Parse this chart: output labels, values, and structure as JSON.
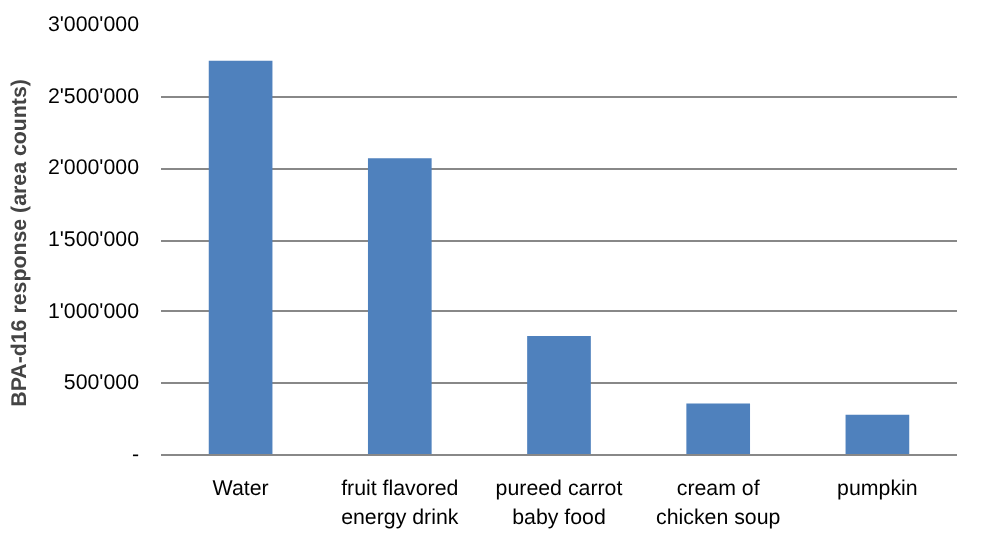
{
  "chart_data": {
    "type": "bar",
    "ylabel": "BPA-d16  response (area counts)",
    "categories": [
      "Water",
      "fruit flavored energy drink",
      "pureed carrot baby food",
      "cream of chicken soup",
      "pumpkin"
    ],
    "values": [
      2750000,
      2070000,
      830000,
      360000,
      280000
    ],
    "color": "#4f81bd",
    "ylim": [
      0,
      3000000
    ],
    "yticks": [
      {
        "value": 0,
        "label": "-"
      },
      {
        "value": 500000,
        "label": "500'000"
      },
      {
        "value": 1000000,
        "label": "1'000'000"
      },
      {
        "value": 1500000,
        "label": "1'500'000"
      },
      {
        "value": 2000000,
        "label": "2'000'000"
      },
      {
        "value": 2500000,
        "label": "2'500'000"
      },
      {
        "value": 3000000,
        "label": "3'000'000"
      }
    ],
    "grid": "y"
  }
}
